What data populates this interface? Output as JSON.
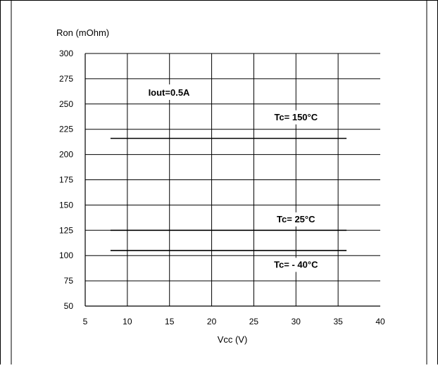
{
  "chart_data": {
    "type": "line",
    "title": "",
    "ylabel": "Ron (mOhm)",
    "xlabel": "Vcc (V)",
    "xlim": [
      5,
      40
    ],
    "ylim": [
      50,
      300
    ],
    "x_ticks": [
      5,
      10,
      15,
      20,
      25,
      30,
      35,
      40
    ],
    "y_ticks": [
      50,
      75,
      100,
      125,
      150,
      175,
      200,
      225,
      250,
      275,
      300
    ],
    "grid": true,
    "annotation": "Iout=0.5A",
    "series": [
      {
        "name": "Tc= 150°C",
        "x": [
          8,
          36
        ],
        "values": [
          216,
          216
        ]
      },
      {
        "name": "Tc= 25°C",
        "x": [
          8,
          36
        ],
        "values": [
          125,
          125
        ]
      },
      {
        "name": "Tc= - 40°C",
        "x": [
          8,
          36
        ],
        "values": [
          105,
          105
        ]
      }
    ]
  }
}
